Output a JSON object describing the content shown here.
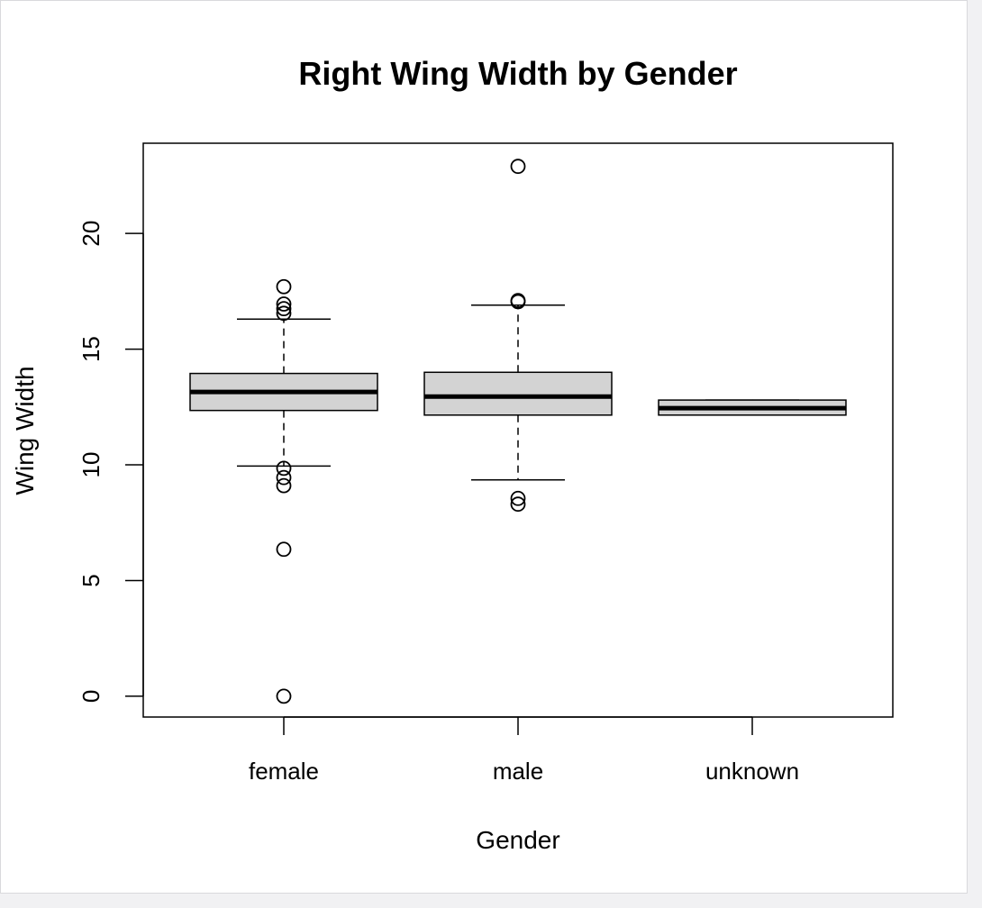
{
  "chart_data": {
    "type": "box",
    "title": "Right Wing Width by Gender",
    "xlabel": "Gender",
    "ylabel": "Wing Width",
    "ylim": [
      -0.9,
      23.9
    ],
    "yticks": [
      0,
      5,
      10,
      15,
      20
    ],
    "grid": false,
    "legend": "none",
    "colors": {
      "box_fill": "#d3d3d3",
      "stroke": "#000000",
      "background": "#ffffff"
    },
    "categories": [
      "female",
      "male",
      "unknown"
    ],
    "boxes": [
      {
        "category": "female",
        "q1": 12.35,
        "median": 13.15,
        "q3": 13.95,
        "whisker_low": 9.95,
        "whisker_high": 16.3,
        "outliers": [
          17.7,
          16.95,
          16.75,
          16.55,
          9.85,
          9.45,
          9.1,
          6.35,
          0.0
        ]
      },
      {
        "category": "male",
        "q1": 12.15,
        "median": 12.95,
        "q3": 14.0,
        "whisker_low": 9.35,
        "whisker_high": 16.9,
        "outliers": [
          22.9,
          17.1,
          17.05,
          8.55,
          8.3
        ]
      },
      {
        "category": "unknown",
        "q1": 12.15,
        "median": 12.45,
        "q3": 12.8,
        "whisker_low": 12.15,
        "whisker_high": 12.8,
        "outliers": []
      }
    ]
  }
}
